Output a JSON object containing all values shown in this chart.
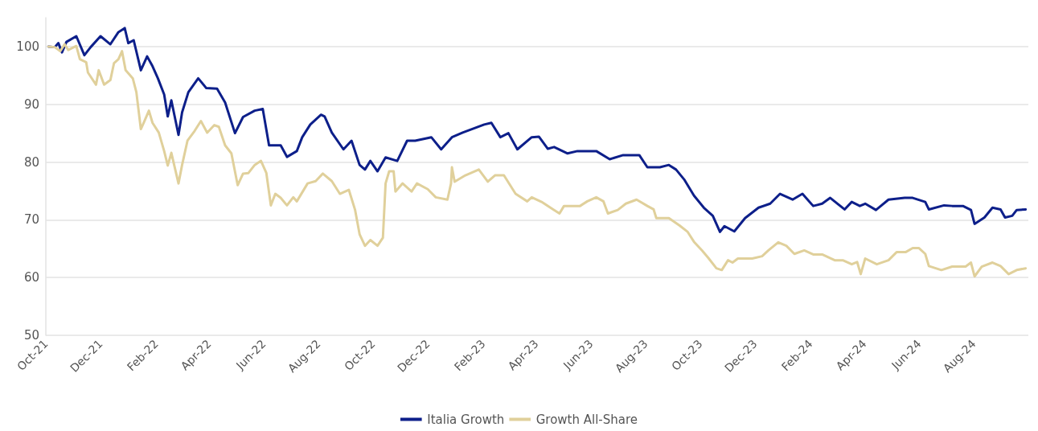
{
  "chart_data": {
    "type": "line",
    "xlim": [
      "2021-10-01",
      "2024-10-01"
    ],
    "xticks": [
      {
        "value": "2021-10-01",
        "label": "Oct-21"
      },
      {
        "value": "2021-12-01",
        "label": "Dec-21"
      },
      {
        "value": "2022-02-01",
        "label": "Feb-22"
      },
      {
        "value": "2022-04-01",
        "label": "Apr-22"
      },
      {
        "value": "2022-06-01",
        "label": "Jun-22"
      },
      {
        "value": "2022-08-01",
        "label": "Aug-22"
      },
      {
        "value": "2022-10-01",
        "label": "Oct-22"
      },
      {
        "value": "2022-12-01",
        "label": "Dec-22"
      },
      {
        "value": "2023-02-01",
        "label": "Feb-23"
      },
      {
        "value": "2023-04-01",
        "label": "Apr-23"
      },
      {
        "value": "2023-06-01",
        "label": "Jun-23"
      },
      {
        "value": "2023-08-01",
        "label": "Aug-23"
      },
      {
        "value": "2023-10-01",
        "label": "Oct-23"
      },
      {
        "value": "2023-12-01",
        "label": "Dec-23"
      },
      {
        "value": "2024-02-01",
        "label": "Feb-24"
      },
      {
        "value": "2024-04-01",
        "label": "Apr-24"
      },
      {
        "value": "2024-06-01",
        "label": "Jun-24"
      },
      {
        "value": "2024-08-01",
        "label": "Aug-24"
      }
    ],
    "ylim": [
      50,
      105
    ],
    "yticks": [
      50,
      60,
      70,
      80,
      90,
      100
    ],
    "grid": "y",
    "legend": "bottom",
    "marker": "none",
    "line_style": "solid",
    "series": [
      {
        "name": "Italia Growth",
        "color": "#0d1f8a",
        "x": [
          "2021-10-04",
          "2021-10-11",
          "2021-10-15",
          "2021-10-19",
          "2021-10-24",
          "2021-11-04",
          "2021-11-13",
          "2021-11-20",
          "2021-12-01",
          "2021-12-12",
          "2021-12-21",
          "2021-12-28",
          "2022-01-01",
          "2022-01-07",
          "2022-01-15",
          "2022-01-22",
          "2022-01-28",
          "2022-02-03",
          "2022-02-10",
          "2022-02-14",
          "2022-02-18",
          "2022-02-26",
          "2022-03-02",
          "2022-03-09",
          "2022-03-20",
          "2022-03-29",
          "2022-04-10",
          "2022-04-19",
          "2022-04-30",
          "2022-05-09",
          "2022-05-22",
          "2022-05-31",
          "2022-06-07",
          "2022-06-20",
          "2022-06-27",
          "2022-07-08",
          "2022-07-14",
          "2022-07-23",
          "2022-08-04",
          "2022-08-08",
          "2022-08-16",
          "2022-08-29",
          "2022-09-07",
          "2022-09-16",
          "2022-09-22",
          "2022-09-28",
          "2022-10-06",
          "2022-10-15",
          "2022-10-28",
          "2022-11-08",
          "2022-11-17",
          "2022-12-05",
          "2022-12-16",
          "2022-12-28",
          "2023-01-09",
          "2023-01-21",
          "2023-02-02",
          "2023-02-10",
          "2023-02-20",
          "2023-03-01",
          "2023-03-11",
          "2023-03-27",
          "2023-04-04",
          "2023-04-14",
          "2023-04-21",
          "2023-05-06",
          "2023-05-17",
          "2023-05-29",
          "2023-06-07",
          "2023-06-22",
          "2023-07-07",
          "2023-07-25",
          "2023-08-03",
          "2023-08-17",
          "2023-08-27",
          "2023-09-04",
          "2023-09-13",
          "2023-09-24",
          "2023-10-05",
          "2023-10-15",
          "2023-10-23",
          "2023-10-28",
          "2023-11-08",
          "2023-11-20",
          "2023-12-05",
          "2023-12-18",
          "2023-12-29",
          "2024-01-12",
          "2024-01-23",
          "2024-02-04",
          "2024-02-14",
          "2024-02-23",
          "2024-03-10",
          "2024-03-18",
          "2024-03-27",
          "2024-04-02",
          "2024-04-14",
          "2024-04-28",
          "2024-05-16",
          "2024-05-25",
          "2024-06-08",
          "2024-06-12",
          "2024-06-29",
          "2024-07-08",
          "2024-07-20",
          "2024-07-29",
          "2024-08-02",
          "2024-08-13",
          "2024-08-22",
          "2024-08-31",
          "2024-09-05",
          "2024-09-13",
          "2024-09-18",
          "2024-09-28"
        ],
        "values": [
          100,
          99.9,
          100.6,
          99,
          100.8,
          101.8,
          98.5,
          99.9,
          101.8,
          100.4,
          102.5,
          103.2,
          100.6,
          101.1,
          95.9,
          98.3,
          96.6,
          94.5,
          91.7,
          87.9,
          90.7,
          84.7,
          88.6,
          92.1,
          94.5,
          92.8,
          92.7,
          90.3,
          85,
          87.8,
          88.9,
          89.2,
          82.9,
          82.9,
          80.9,
          81.9,
          84.3,
          86.5,
          88.2,
          87.9,
          85.1,
          82.2,
          83.7,
          79.5,
          78.7,
          80.2,
          78.4,
          80.8,
          80.2,
          83.7,
          83.7,
          84.3,
          82.2,
          84.3,
          85.1,
          85.8,
          86.5,
          86.8,
          84.3,
          85,
          82.2,
          84.3,
          84.4,
          82.3,
          82.6,
          81.5,
          81.9,
          81.9,
          81.9,
          80.5,
          81.2,
          81.2,
          79.1,
          79.1,
          79.5,
          78.7,
          77,
          74.2,
          72.1,
          70.7,
          67.9,
          68.9,
          68,
          70.3,
          72.1,
          72.8,
          74.5,
          73.5,
          74.5,
          72.4,
          72.8,
          73.8,
          71.8,
          73.1,
          72.4,
          72.8,
          71.7,
          73.5,
          73.8,
          73.8,
          73.1,
          71.8,
          72.5,
          72.4,
          72.4,
          71.7,
          69.3,
          70.4,
          72.1,
          71.8,
          70.4,
          70.7,
          71.7,
          71.8
        ]
      },
      {
        "name": "Growth All-Share",
        "color": "#e0d09b",
        "x": [
          "2021-10-04",
          "2021-10-11",
          "2021-10-17",
          "2021-10-22",
          "2021-10-26",
          "2021-11-04",
          "2021-11-08",
          "2021-11-15",
          "2021-11-17",
          "2021-11-26",
          "2021-11-29",
          "2021-12-05",
          "2021-12-12",
          "2021-12-16",
          "2021-12-21",
          "2021-12-25",
          "2021-12-29",
          "2022-01-06",
          "2022-01-10",
          "2022-01-15",
          "2022-01-19",
          "2022-01-24",
          "2022-01-28",
          "2022-02-04",
          "2022-02-10",
          "2022-02-14",
          "2022-02-18",
          "2022-02-26",
          "2022-03-02",
          "2022-03-08",
          "2022-03-16",
          "2022-03-23",
          "2022-03-30",
          "2022-04-07",
          "2022-04-12",
          "2022-04-19",
          "2022-04-26",
          "2022-05-03",
          "2022-05-09",
          "2022-05-15",
          "2022-05-22",
          "2022-05-29",
          "2022-06-04",
          "2022-06-09",
          "2022-06-14",
          "2022-06-20",
          "2022-06-27",
          "2022-07-04",
          "2022-07-08",
          "2022-07-20",
          "2022-07-29",
          "2022-08-06",
          "2022-08-16",
          "2022-08-25",
          "2022-09-04",
          "2022-09-11",
          "2022-09-16",
          "2022-09-22",
          "2022-09-28",
          "2022-10-06",
          "2022-10-12",
          "2022-10-15",
          "2022-10-19",
          "2022-10-24",
          "2022-10-26",
          "2022-11-03",
          "2022-11-13",
          "2022-11-19",
          "2022-12-01",
          "2022-12-10",
          "2022-12-23",
          "2022-12-27",
          "2022-12-28",
          "2022-12-31",
          "2023-01-12",
          "2023-01-27",
          "2023-02-06",
          "2023-02-14",
          "2023-02-24",
          "2023-03-09",
          "2023-03-22",
          "2023-03-27",
          "2023-04-07",
          "2023-04-21",
          "2023-04-27",
          "2023-05-02",
          "2023-05-20",
          "2023-05-28",
          "2023-06-07",
          "2023-06-15",
          "2023-06-20",
          "2023-07-01",
          "2023-07-10",
          "2023-07-22",
          "2023-08-03",
          "2023-08-10",
          "2023-08-13",
          "2023-08-27",
          "2023-09-08",
          "2023-09-17",
          "2023-09-24",
          "2023-10-03",
          "2023-10-10",
          "2023-10-19",
          "2023-10-25",
          "2023-11-01",
          "2023-11-06",
          "2023-11-12",
          "2023-11-28",
          "2023-12-09",
          "2023-12-16",
          "2023-12-27",
          "2024-01-05",
          "2024-01-14",
          "2024-01-25",
          "2024-02-04",
          "2024-02-14",
          "2024-02-28",
          "2024-03-08",
          "2024-03-18",
          "2024-03-24",
          "2024-03-28",
          "2024-04-02",
          "2024-04-15",
          "2024-04-28",
          "2024-05-07",
          "2024-05-17",
          "2024-05-25",
          "2024-06-01",
          "2024-06-08",
          "2024-06-12",
          "2024-06-26",
          "2024-07-08",
          "2024-07-23",
          "2024-07-29",
          "2024-08-02",
          "2024-08-10",
          "2024-08-22",
          "2024-08-31",
          "2024-09-09",
          "2024-09-18",
          "2024-09-28"
        ],
        "values": [
          100,
          99.9,
          99.2,
          100.4,
          99.4,
          100.1,
          97.8,
          97.3,
          95.5,
          93.4,
          95.9,
          93.4,
          94.2,
          97.1,
          97.8,
          99.2,
          95.9,
          94.5,
          92.1,
          85.7,
          87.1,
          88.9,
          86.8,
          85.1,
          81.9,
          79.4,
          81.6,
          76.3,
          79.5,
          83.7,
          85.4,
          87.1,
          85.1,
          86.4,
          86.1,
          82.9,
          81.5,
          76,
          78,
          78.1,
          79.5,
          80.2,
          78.1,
          72.5,
          74.5,
          73.8,
          72.5,
          73.9,
          73.2,
          76.3,
          76.7,
          78,
          76.7,
          74.5,
          75.2,
          71.7,
          67.5,
          65.5,
          66.5,
          65.5,
          66.9,
          76.3,
          78.4,
          78.4,
          74.9,
          76.3,
          74.9,
          76.3,
          75.3,
          73.9,
          73.5,
          76.3,
          79.1,
          76.6,
          77.7,
          78.7,
          76.6,
          77.7,
          77.7,
          74.5,
          73.2,
          73.9,
          73.1,
          71.7,
          71.1,
          72.4,
          72.4,
          73.2,
          73.9,
          73.2,
          71.1,
          71.7,
          72.8,
          73.5,
          72.4,
          71.8,
          70.3,
          70.3,
          69,
          67.9,
          66.2,
          64.7,
          63.4,
          61.6,
          61.3,
          63,
          62.6,
          63.3,
          63.3,
          63.7,
          64.7,
          66.1,
          65.5,
          64.1,
          64.7,
          64,
          64,
          63,
          63,
          62.3,
          62.7,
          60.6,
          63.3,
          62.3,
          63,
          64.4,
          64.4,
          65.1,
          65.1,
          64.1,
          62,
          61.3,
          61.9,
          61.9,
          62.6,
          60.2,
          61.9,
          62.6,
          62,
          60.6,
          61.3,
          61.6
        ]
      }
    ]
  }
}
